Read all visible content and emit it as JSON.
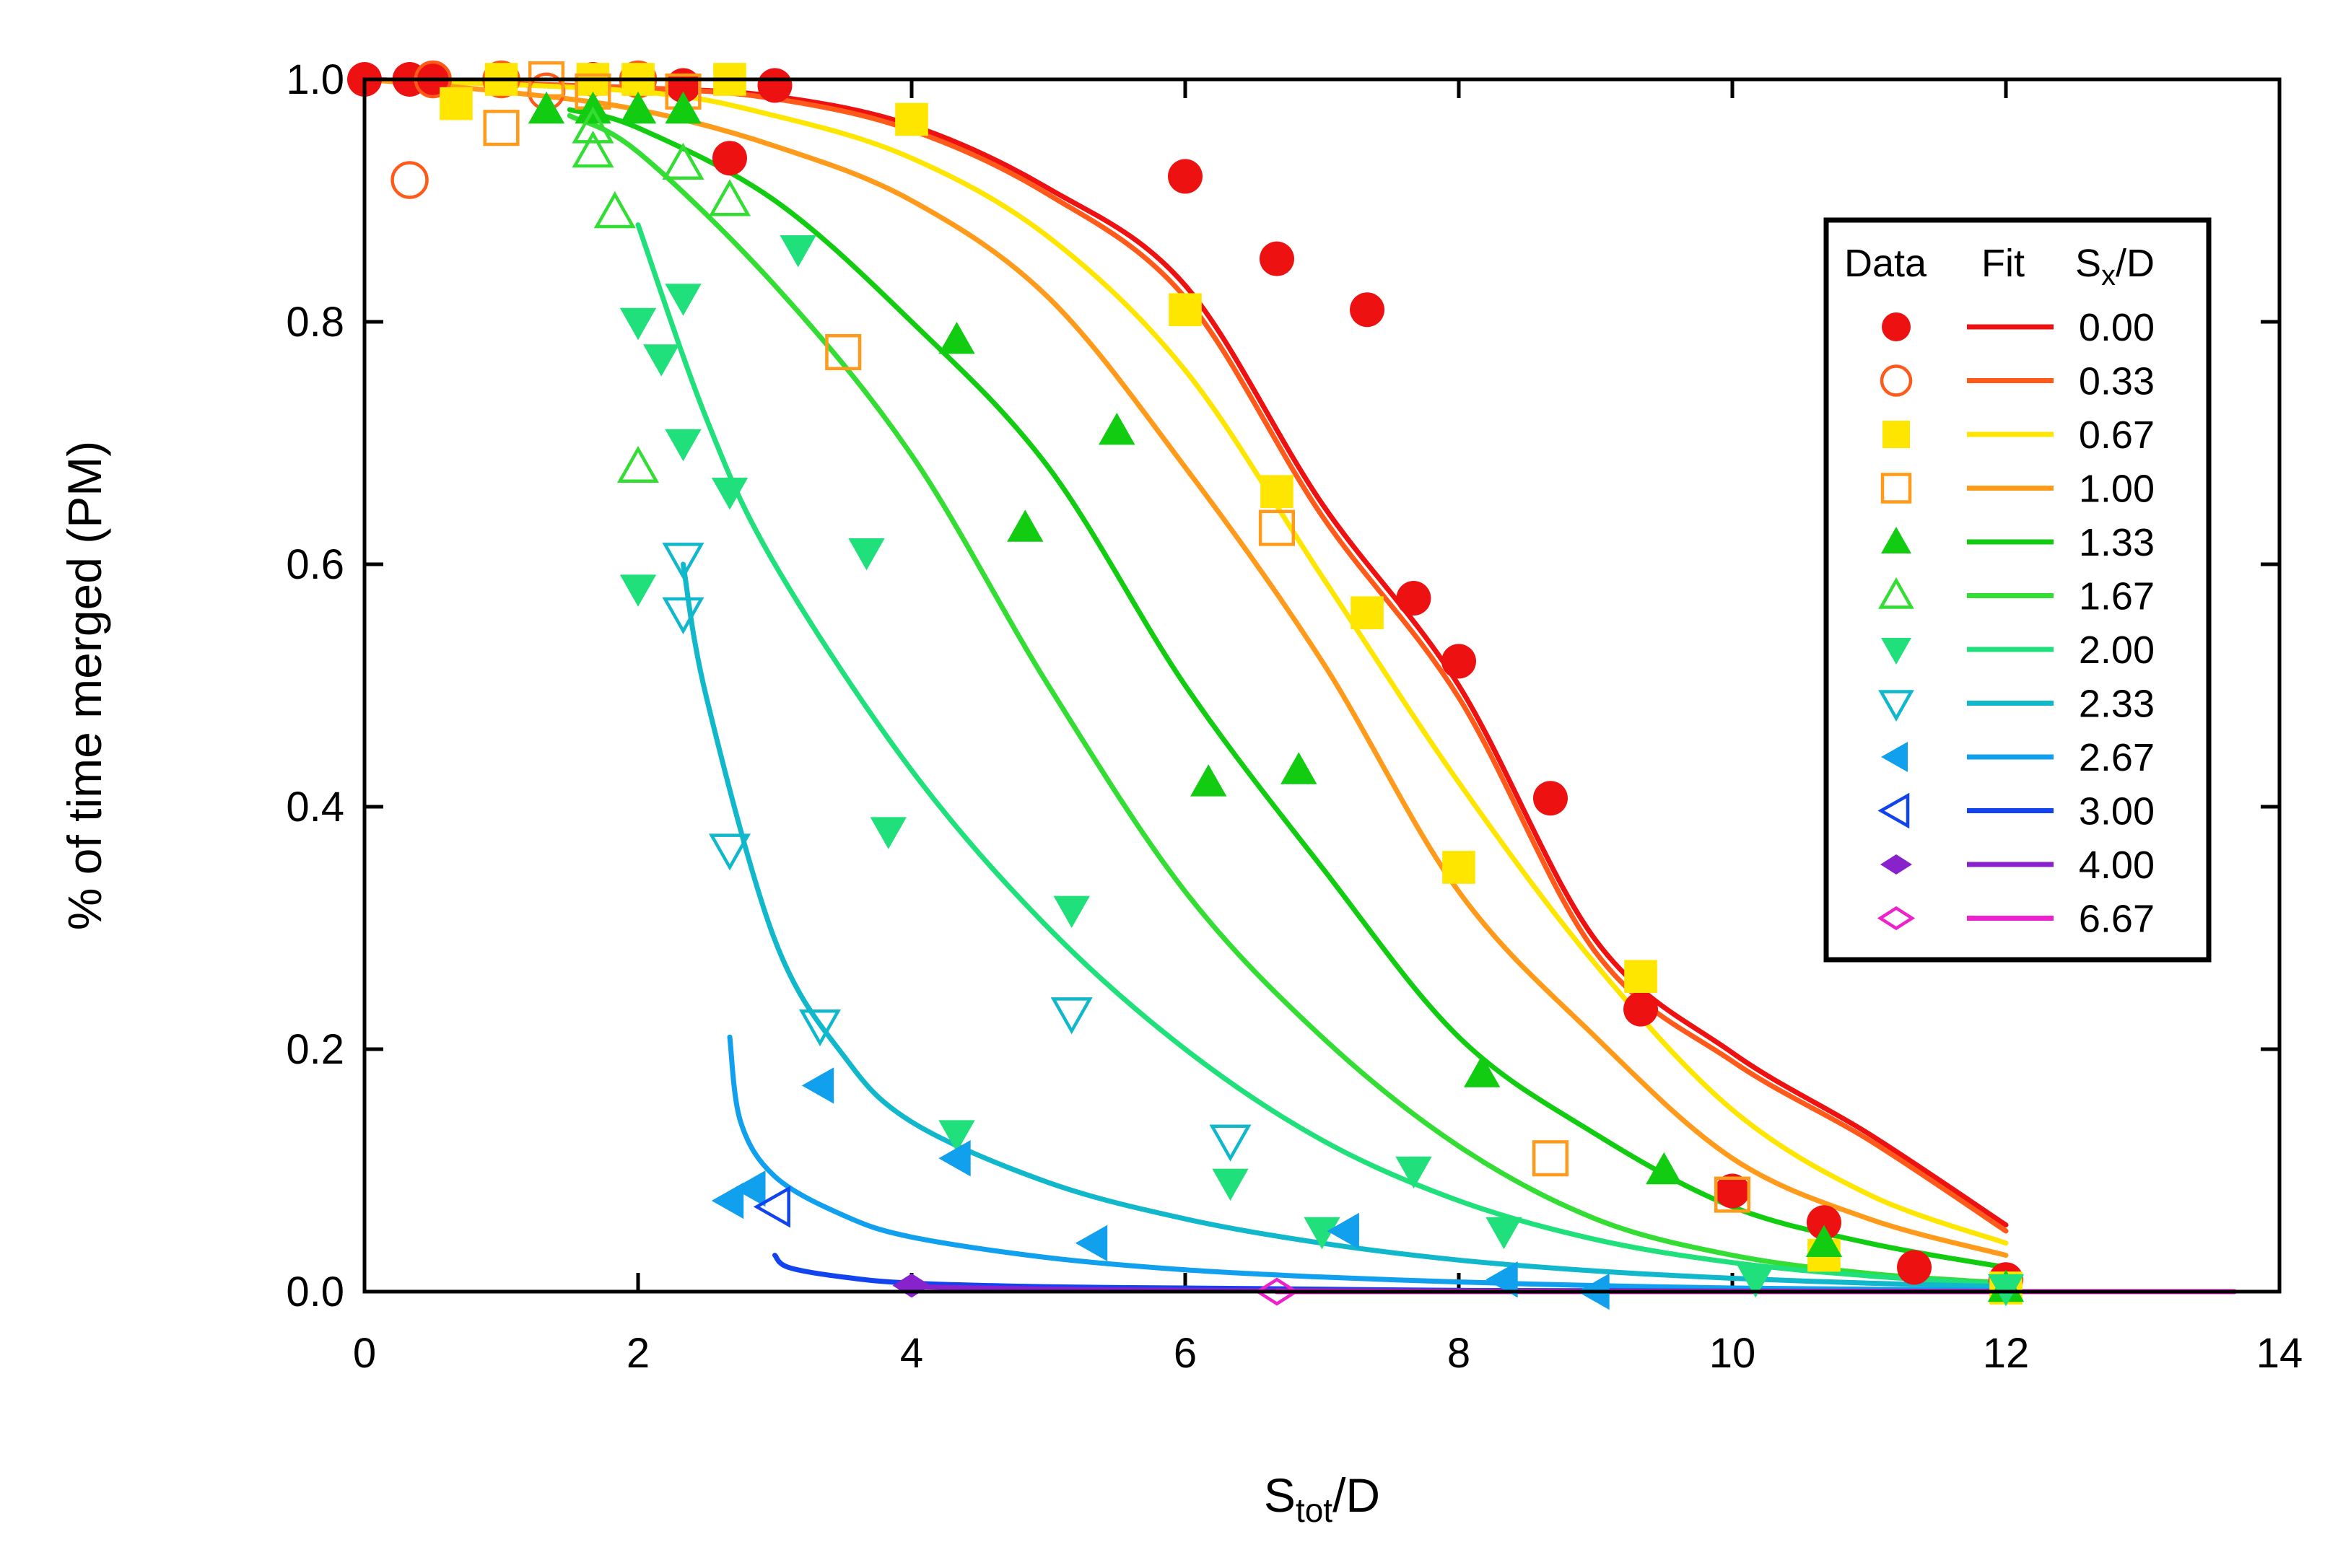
{
  "chart_data": {
    "type": "scatter",
    "title": "",
    "xlabel": {
      "main": "S",
      "sub": "tot",
      "tail": "/D"
    },
    "ylabel": "% of time merged (PM)",
    "xlim": [
      0,
      14
    ],
    "ylim": [
      0,
      1
    ],
    "xticks": [
      0,
      2,
      4,
      6,
      8,
      10,
      12,
      14
    ],
    "xtick_labels": [
      "0",
      "2",
      "4",
      "6",
      "8",
      "10",
      "12",
      "14"
    ],
    "yticks": [
      0,
      0.2,
      0.4,
      0.6,
      0.8,
      1.0
    ],
    "ytick_labels": [
      "0.0",
      "0.2",
      "0.4",
      "0.6",
      "0.8",
      "1.0"
    ],
    "grid": false,
    "legend": {
      "position": "right",
      "header_data": "Data",
      "header_fit": "Fit",
      "header_param": {
        "main": "S",
        "sub": "x",
        "tail": "/D"
      }
    },
    "series": [
      {
        "name": "0.00",
        "color": "#ee1111",
        "marker": "circle",
        "filled": true,
        "points": [
          [
            0,
            1.0
          ],
          [
            0.33,
            1.0
          ],
          [
            0.5,
            1.0
          ],
          [
            1.0,
            1.0
          ],
          [
            1.67,
            1.0
          ],
          [
            2.33,
            0.995
          ],
          [
            2.67,
            0.935
          ],
          [
            3.0,
            0.995
          ],
          [
            6.0,
            0.92
          ],
          [
            6.67,
            0.852
          ],
          [
            7.33,
            0.81
          ],
          [
            7.67,
            0.572
          ],
          [
            8.0,
            0.52
          ],
          [
            8.67,
            0.407
          ],
          [
            9.33,
            0.233
          ],
          [
            10.0,
            0.083
          ],
          [
            10.67,
            0.057
          ],
          [
            11.33,
            0.02
          ],
          [
            12.0,
            0.01
          ]
        ],
        "fit": [
          [
            0,
            1.0
          ],
          [
            2,
            0.993
          ],
          [
            3,
            0.986
          ],
          [
            4,
            0.962
          ],
          [
            5,
            0.91
          ],
          [
            6,
            0.83
          ],
          [
            7,
            0.65
          ],
          [
            8,
            0.5
          ],
          [
            9,
            0.29
          ],
          [
            10,
            0.197
          ],
          [
            11,
            0.13
          ],
          [
            12,
            0.055
          ]
        ]
      },
      {
        "name": "0.33",
        "color": "#ff5a1a",
        "marker": "circle",
        "filled": false,
        "points": [
          [
            0.33,
            0.917
          ],
          [
            0.5,
            1.0
          ],
          [
            1.0,
            1.0
          ],
          [
            1.33,
            0.99
          ],
          [
            2.0,
            1.0
          ]
        ],
        "fit": [
          [
            0,
            1.0
          ],
          [
            2,
            0.993
          ],
          [
            3,
            0.984
          ],
          [
            4,
            0.958
          ],
          [
            5,
            0.905
          ],
          [
            6,
            0.82
          ],
          [
            7,
            0.64
          ],
          [
            8,
            0.49
          ],
          [
            9,
            0.28
          ],
          [
            10,
            0.19
          ],
          [
            11,
            0.125
          ],
          [
            12,
            0.05
          ]
        ]
      },
      {
        "name": "0.67",
        "color": "#ffe600",
        "marker": "square",
        "filled": true,
        "points": [
          [
            0.67,
            0.98
          ],
          [
            1.0,
            1.0
          ],
          [
            1.67,
            1.0
          ],
          [
            2.0,
            1.0
          ],
          [
            2.67,
            1.0
          ],
          [
            4.0,
            0.967
          ],
          [
            6.0,
            0.81
          ],
          [
            6.67,
            0.66
          ],
          [
            7.33,
            0.56
          ],
          [
            8.0,
            0.35
          ],
          [
            9.33,
            0.26
          ],
          [
            10.67,
            0.03
          ],
          [
            12.0,
            0.003
          ]
        ],
        "fit": [
          [
            0,
            1.0
          ],
          [
            2,
            0.99
          ],
          [
            3,
            0.97
          ],
          [
            4,
            0.935
          ],
          [
            5,
            0.87
          ],
          [
            6,
            0.76
          ],
          [
            7,
            0.59
          ],
          [
            8,
            0.42
          ],
          [
            9,
            0.27
          ],
          [
            10,
            0.15
          ],
          [
            11,
            0.08
          ],
          [
            12,
            0.04
          ]
        ]
      },
      {
        "name": "1.00",
        "color": "#ff9a1a",
        "marker": "square",
        "filled": false,
        "points": [
          [
            1.0,
            0.96
          ],
          [
            1.33,
            1.0
          ],
          [
            1.67,
            0.99
          ],
          [
            2.33,
            0.99
          ],
          [
            3.5,
            0.775
          ],
          [
            6.67,
            0.63
          ],
          [
            8.67,
            0.11
          ],
          [
            10.0,
            0.08
          ]
        ],
        "fit": [
          [
            0,
            1.0
          ],
          [
            1,
            0.99
          ],
          [
            2,
            0.975
          ],
          [
            3,
            0.945
          ],
          [
            4,
            0.9
          ],
          [
            5,
            0.82
          ],
          [
            6,
            0.68
          ],
          [
            7,
            0.52
          ],
          [
            8,
            0.33
          ],
          [
            9,
            0.21
          ],
          [
            10,
            0.11
          ],
          [
            11,
            0.06
          ],
          [
            12,
            0.03
          ]
        ]
      },
      {
        "name": "1.33",
        "color": "#11cc11",
        "marker": "triangle-up",
        "filled": true,
        "points": [
          [
            1.33,
            0.975
          ],
          [
            1.67,
            0.975
          ],
          [
            2.0,
            0.975
          ],
          [
            2.33,
            0.975
          ],
          [
            4.33,
            0.785
          ],
          [
            4.83,
            0.63
          ],
          [
            5.5,
            0.71
          ],
          [
            6.17,
            0.42
          ],
          [
            6.83,
            0.43
          ],
          [
            8.17,
            0.18
          ],
          [
            9.5,
            0.1
          ],
          [
            10.67,
            0.04
          ],
          [
            12.0,
            0.003
          ]
        ],
        "fit": [
          [
            1.5,
            0.975
          ],
          [
            2,
            0.96
          ],
          [
            3,
            0.9
          ],
          [
            4,
            0.8
          ],
          [
            5,
            0.68
          ],
          [
            6,
            0.5
          ],
          [
            7,
            0.35
          ],
          [
            8,
            0.21
          ],
          [
            9,
            0.13
          ],
          [
            10,
            0.07
          ],
          [
            11,
            0.04
          ],
          [
            12,
            0.02
          ]
        ]
      },
      {
        "name": "1.67",
        "color": "#33dd33",
        "marker": "triangle-up",
        "filled": false,
        "points": [
          [
            1.67,
            0.94
          ],
          [
            1.67,
            0.96
          ],
          [
            1.83,
            0.89
          ],
          [
            2.0,
            0.68
          ],
          [
            2.33,
            0.93
          ],
          [
            2.67,
            0.9
          ]
        ],
        "fit": [
          [
            1.5,
            0.97
          ],
          [
            2,
            0.94
          ],
          [
            3,
            0.83
          ],
          [
            4,
            0.69
          ],
          [
            5,
            0.5
          ],
          [
            6,
            0.33
          ],
          [
            7,
            0.21
          ],
          [
            8,
            0.12
          ],
          [
            9,
            0.06
          ],
          [
            10,
            0.03
          ],
          [
            11,
            0.015
          ],
          [
            12,
            0.007
          ]
        ]
      },
      {
        "name": "2.00",
        "color": "#1fe07a",
        "marker": "triangle-down",
        "filled": true,
        "points": [
          [
            2.0,
            0.58
          ],
          [
            2.0,
            0.8
          ],
          [
            2.17,
            0.77
          ],
          [
            2.33,
            0.82
          ],
          [
            2.33,
            0.7
          ],
          [
            2.67,
            0.66
          ],
          [
            3.17,
            0.86
          ],
          [
            3.67,
            0.61
          ],
          [
            3.83,
            0.38
          ],
          [
            4.33,
            0.13
          ],
          [
            5.17,
            0.315
          ],
          [
            6.33,
            0.09
          ],
          [
            7.0,
            0.05
          ],
          [
            7.67,
            0.1
          ],
          [
            8.33,
            0.05
          ],
          [
            10.17,
            0.01
          ],
          [
            12.0,
            0.003
          ]
        ],
        "fit": [
          [
            2,
            0.88
          ],
          [
            2.5,
            0.72
          ],
          [
            3,
            0.6
          ],
          [
            4,
            0.43
          ],
          [
            5,
            0.3
          ],
          [
            6,
            0.2
          ],
          [
            7,
            0.125
          ],
          [
            8,
            0.075
          ],
          [
            9,
            0.043
          ],
          [
            10,
            0.024
          ],
          [
            11,
            0.013
          ],
          [
            12,
            0.006
          ]
        ]
      },
      {
        "name": "2.33",
        "color": "#11b8cc",
        "marker": "triangle-down",
        "filled": false,
        "points": [
          [
            2.33,
            0.605
          ],
          [
            2.33,
            0.56
          ],
          [
            2.67,
            0.365
          ],
          [
            3.33,
            0.22
          ],
          [
            5.17,
            0.23
          ],
          [
            6.33,
            0.125
          ]
        ],
        "fit": [
          [
            2.33,
            0.6
          ],
          [
            2.5,
            0.49
          ],
          [
            3,
            0.29
          ],
          [
            3.5,
            0.195
          ],
          [
            4,
            0.14
          ],
          [
            5,
            0.09
          ],
          [
            6,
            0.06
          ],
          [
            7,
            0.04
          ],
          [
            8,
            0.026
          ],
          [
            9,
            0.017
          ],
          [
            10,
            0.011
          ],
          [
            11,
            0.007
          ],
          [
            12,
            0.004
          ]
        ]
      },
      {
        "name": "2.67",
        "color": "#11a0ee",
        "marker": "triangle-left",
        "filled": true,
        "points": [
          [
            2.67,
            0.075
          ],
          [
            2.83,
            0.085
          ],
          [
            3.33,
            0.17
          ],
          [
            4.33,
            0.11
          ],
          [
            5.33,
            0.04
          ],
          [
            7.17,
            0.05
          ],
          [
            8.33,
            0.01
          ],
          [
            9.0,
            0.0
          ]
        ],
        "fit": [
          [
            2.67,
            0.21
          ],
          [
            2.75,
            0.14
          ],
          [
            3,
            0.095
          ],
          [
            3.5,
            0.063
          ],
          [
            4,
            0.045
          ],
          [
            5,
            0.028
          ],
          [
            6,
            0.018
          ],
          [
            7,
            0.012
          ],
          [
            8,
            0.008
          ],
          [
            9,
            0.005
          ],
          [
            10,
            0.003
          ],
          [
            11,
            0.002
          ],
          [
            12,
            0.001
          ]
        ]
      },
      {
        "name": "3.00",
        "color": "#1144ee",
        "marker": "triangle-left",
        "filled": false,
        "points": [
          [
            3.0,
            0.07
          ]
        ],
        "fit": [
          [
            3.0,
            0.03
          ],
          [
            3.1,
            0.02
          ],
          [
            3.5,
            0.012
          ],
          [
            4,
            0.007
          ],
          [
            5,
            0.004
          ],
          [
            6,
            0.003
          ],
          [
            7,
            0.002
          ],
          [
            8,
            0.001
          ],
          [
            10,
            0.0005
          ],
          [
            12,
            0.0002
          ]
        ]
      },
      {
        "name": "4.00",
        "color": "#8822cc",
        "marker": "diamond",
        "filled": true,
        "points": [
          [
            4.0,
            0.005
          ]
        ],
        "fit": [
          [
            4.0,
            0.004
          ],
          [
            5,
            0.002
          ],
          [
            6,
            0.001
          ],
          [
            8,
            0.0005
          ],
          [
            10,
            0.0002
          ],
          [
            12,
            0.0001
          ]
        ]
      },
      {
        "name": "6.67",
        "color": "#ee22cc",
        "marker": "diamond",
        "filled": false,
        "points": [
          [
            6.67,
            0.0
          ]
        ],
        "fit": [
          [
            6.67,
            0.0
          ],
          [
            13.67,
            0.0
          ]
        ]
      }
    ]
  }
}
